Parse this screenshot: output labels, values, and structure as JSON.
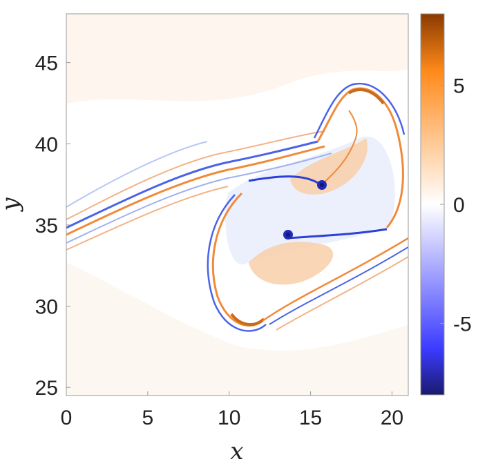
{
  "chart_data": {
    "type": "heatmap",
    "title": "",
    "xlabel": "x",
    "ylabel": "y",
    "xlim": [
      0,
      21
    ],
    "ylim": [
      24.5,
      48
    ],
    "xticks": [
      0,
      5,
      10,
      15,
      20
    ],
    "xtick_labels": [
      "0",
      "5",
      "10",
      "15",
      "20"
    ],
    "yticks": [
      25,
      30,
      35,
      40,
      45
    ],
    "ytick_labels": [
      "25",
      "30",
      "35",
      "40",
      "45"
    ],
    "colorbar": {
      "clim": [
        -8,
        8
      ],
      "ticks": [
        -5,
        0,
        5
      ],
      "tick_labels": [
        "-5",
        "0",
        "5"
      ],
      "colormap": "diverging blue-white-orange",
      "colors": {
        "min": "#1a1a6e",
        "low": "#3b3bff",
        "mid": "#ffffff",
        "high": "#ff8a1a",
        "max": "#8a3a00"
      }
    },
    "grid": false,
    "features": {
      "vortex_cores": [
        {
          "x": 15.6,
          "y": 37.5,
          "sign": "negative"
        },
        {
          "x": 13.6,
          "y": 34.5,
          "sign": "negative"
        }
      ],
      "field_description": "vorticity-like field with thin alternating positive/negative filaments wrapping two co-rotating vortex cores"
    }
  }
}
